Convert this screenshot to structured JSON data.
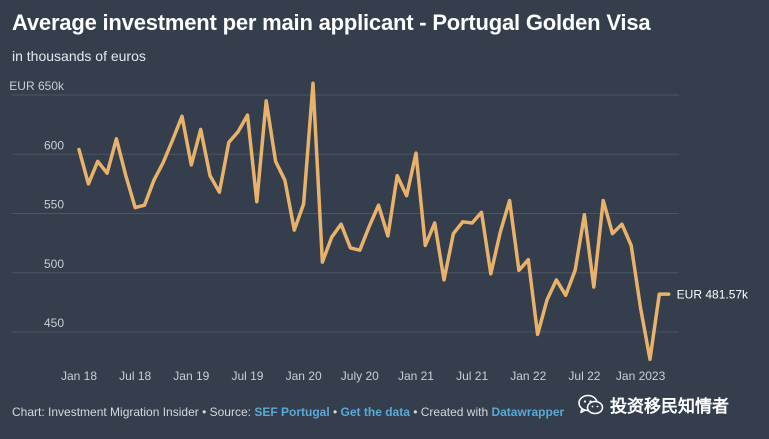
{
  "header": {
    "title": "Average investment per main applicant - Portugal Golden Visa",
    "subtitle": "in thousands of euros"
  },
  "chart_data": {
    "type": "line",
    "title": "Average investment per main applicant - Portugal Golden Visa",
    "subtitle": "in thousands of euros",
    "xlabel": "",
    "ylabel": "",
    "ylim": [
      425,
      650
    ],
    "y_ticks": [
      450,
      500,
      550,
      600,
      650
    ],
    "y_tick_labels": [
      "450",
      "500",
      "550",
      "600",
      "EUR 650k"
    ],
    "x_tick_labels": [
      "Jan 18",
      "Jul 18",
      "Jan 19",
      "Jul 19",
      "Jan 20",
      "July 20",
      "Jan 21",
      "Jul 21",
      "Jan 22",
      "Jul 22",
      "Jan 2023"
    ],
    "x_tick_months": [
      "2018-01",
      "2018-07",
      "2019-01",
      "2019-07",
      "2020-01",
      "2020-07",
      "2021-01",
      "2021-07",
      "2022-01",
      "2022-07",
      "2023-01"
    ],
    "grid": true,
    "line_color": "#e8b26a",
    "series": [
      {
        "x": [
          "2018-01",
          "2018-02",
          "2018-03",
          "2018-04",
          "2018-05",
          "2018-06",
          "2018-07",
          "2018-08",
          "2018-09",
          "2018-10",
          "2018-11",
          "2018-12",
          "2019-01",
          "2019-02",
          "2019-03",
          "2019-04",
          "2019-05",
          "2019-06",
          "2019-07",
          "2019-08",
          "2019-09",
          "2019-10",
          "2019-11",
          "2019-12",
          "2020-01",
          "2020-02",
          "2020-03",
          "2020-04",
          "2020-05",
          "2020-06",
          "2020-07",
          "2020-08",
          "2020-09",
          "2020-10",
          "2020-11",
          "2020-12",
          "2021-01",
          "2021-02",
          "2021-03",
          "2021-04",
          "2021-05",
          "2021-06",
          "2021-07",
          "2021-08",
          "2021-09",
          "2021-10",
          "2021-11",
          "2021-12",
          "2022-01",
          "2022-02",
          "2022-03",
          "2022-04",
          "2022-05",
          "2022-06",
          "2022-07",
          "2022-08",
          "2022-09",
          "2022-10",
          "2022-11",
          "2022-12",
          "2023-01",
          "2023-02",
          "2023-03",
          "2023-04"
        ],
        "values": [
          604,
          575,
          594,
          584,
          613,
          582,
          555,
          557,
          578,
          593,
          612,
          632,
          591,
          621,
          582,
          568,
          610,
          619,
          633,
          560,
          645,
          594,
          578,
          536,
          558,
          660,
          509,
          530,
          541,
          521,
          519,
          539,
          557,
          531,
          582,
          565,
          601,
          523,
          542,
          494,
          533,
          543,
          542,
          551,
          499,
          534,
          561,
          502,
          511,
          448,
          477,
          494,
          481,
          502,
          549,
          488,
          561,
          533,
          541,
          523,
          470,
          427,
          482,
          482
        ]
      }
    ],
    "annotations": [
      {
        "text": "EUR 481.57k",
        "x": "2023-04",
        "y": 481.57
      }
    ]
  },
  "footer": {
    "prefix": "Chart: Investment Migration Insider • Source: ",
    "source_link": "SEF Portugal",
    "sep": " • ",
    "data_link": "Get the data",
    "mid": " • Created with ",
    "tool_link": "Datawrapper"
  },
  "watermark": {
    "text": "投资移民知情者",
    "icon": "wechat-icon"
  }
}
